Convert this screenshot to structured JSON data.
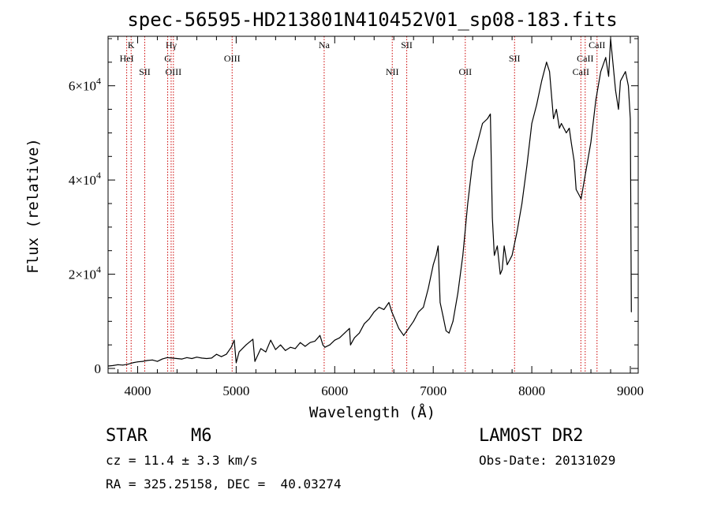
{
  "chart_data": {
    "type": "line",
    "title": "spec-56595-HD213801N410452V01_sp08-183.fits",
    "xlabel": "Wavelength (Å)",
    "ylabel": "Flux (relative)",
    "xlim": [
      3700,
      9080
    ],
    "ylim": [
      -1000,
      70500
    ],
    "x_ticks": [
      {
        "value": 4000,
        "label": "4000"
      },
      {
        "value": 5000,
        "label": "5000"
      },
      {
        "value": 6000,
        "label": "6000"
      },
      {
        "value": 7000,
        "label": "7000"
      },
      {
        "value": 8000,
        "label": "8000"
      },
      {
        "value": 9000,
        "label": "9000"
      }
    ],
    "y_ticks": [
      {
        "value": 0,
        "mant": "0",
        "exp": ""
      },
      {
        "value": 20000,
        "mant": "2×10",
        "exp": "4"
      },
      {
        "value": 40000,
        "mant": "4×10",
        "exp": "4"
      },
      {
        "value": 60000,
        "mant": "6×10",
        "exp": "4"
      }
    ],
    "grid": false,
    "line_color": "#000000",
    "marker_color": "#cc0000",
    "lines": [
      {
        "name": "K",
        "x": 3934,
        "row": 0
      },
      {
        "name": "HeI",
        "x": 3889,
        "row": 1
      },
      {
        "name": "SII",
        "x": 4072,
        "row": 2
      },
      {
        "name": "Hγ",
        "x": 4340,
        "row": 0
      },
      {
        "name": "G",
        "x": 4305,
        "row": 1
      },
      {
        "name": "OIII",
        "x": 4363,
        "row": 2
      },
      {
        "name": "OIII",
        "x": 4959,
        "row": 1
      },
      {
        "name": "Na",
        "x": 5893,
        "row": 0
      },
      {
        "name": "NII",
        "x": 6584,
        "row": 2
      },
      {
        "name": "SII",
        "x": 6731,
        "row": 0
      },
      {
        "name": "OII",
        "x": 7325,
        "row": 2
      },
      {
        "name": "SII",
        "x": 7825,
        "row": 1
      },
      {
        "name": "CaII",
        "x": 8498,
        "row": 2
      },
      {
        "name": "CaII",
        "x": 8542,
        "row": 1
      },
      {
        "name": "CaII",
        "x": 8662,
        "row": 0
      }
    ],
    "series": [
      {
        "x": [
          3700,
          3750,
          3800,
          3850,
          3900,
          3950,
          4000,
          4050,
          4100,
          4150,
          4200,
          4250,
          4300,
          4350,
          4400,
          4450,
          4500,
          4550,
          4600,
          4650,
          4700,
          4750,
          4800,
          4850,
          4900,
          4950,
          4980,
          5000,
          5030,
          5100,
          5170,
          5190,
          5250,
          5300,
          5350,
          5400,
          5450,
          5500,
          5550,
          5600,
          5650,
          5700,
          5750,
          5800,
          5850,
          5880,
          5900,
          5950,
          6000,
          6050,
          6100,
          6150,
          6160,
          6200,
          6250,
          6300,
          6350,
          6400,
          6450,
          6500,
          6550,
          6580,
          6600,
          6650,
          6700,
          6750,
          6800,
          6850,
          6900,
          6950,
          7000,
          7030,
          7050,
          7070,
          7100,
          7130,
          7160,
          7200,
          7250,
          7300,
          7350,
          7400,
          7450,
          7500,
          7550,
          7580,
          7600,
          7620,
          7650,
          7680,
          7700,
          7720,
          7750,
          7800,
          7850,
          7900,
          7950,
          8000,
          8050,
          8100,
          8150,
          8180,
          8200,
          8220,
          8250,
          8280,
          8300,
          8350,
          8380,
          8400,
          8430,
          8450,
          8500,
          8550,
          8600,
          8650,
          8700,
          8750,
          8780,
          8800,
          8850,
          8880,
          8900,
          8950,
          8980,
          9000,
          9010
        ],
        "y": [
          500,
          600,
          800,
          700,
          900,
          1200,
          1400,
          1500,
          1700,
          1800,
          1500,
          2000,
          2300,
          2200,
          2100,
          2000,
          2300,
          2100,
          2400,
          2200,
          2100,
          2200,
          3000,
          2500,
          3000,
          4500,
          6000,
          1200,
          3500,
          5000,
          6200,
          1500,
          4200,
          3500,
          6000,
          4000,
          5000,
          3800,
          4500,
          4200,
          5500,
          4700,
          5500,
          5800,
          7000,
          5000,
          4500,
          5000,
          6000,
          6500,
          7500,
          8500,
          5000,
          6500,
          7500,
          9500,
          10500,
          12000,
          13000,
          12500,
          14000,
          12000,
          11000,
          8500,
          7000,
          8500,
          10000,
          12000,
          13000,
          17000,
          22000,
          24000,
          26000,
          14000,
          11000,
          8000,
          7500,
          10000,
          16000,
          24000,
          35000,
          44000,
          48000,
          52000,
          53000,
          54000,
          32000,
          24000,
          26000,
          20000,
          21000,
          26000,
          22000,
          24000,
          29000,
          35000,
          43000,
          52000,
          56000,
          61000,
          65000,
          63000,
          58000,
          53000,
          55000,
          51000,
          52000,
          50000,
          51000,
          48000,
          44000,
          38000,
          36000,
          42000,
          48000,
          57000,
          63000,
          66000,
          62000,
          70000,
          59000,
          55000,
          61000,
          63000,
          60000,
          53000,
          12000
        ]
      }
    ]
  },
  "info": {
    "object_class": "STAR",
    "subclass": "M6",
    "redshift_line": "cz = 11.4 ± 3.3 km/s",
    "coords_line": "RA = 325.25158, DEC =  40.03274",
    "survey": "LAMOST DR2",
    "obs_date": "Obs-Date: 20131029"
  }
}
